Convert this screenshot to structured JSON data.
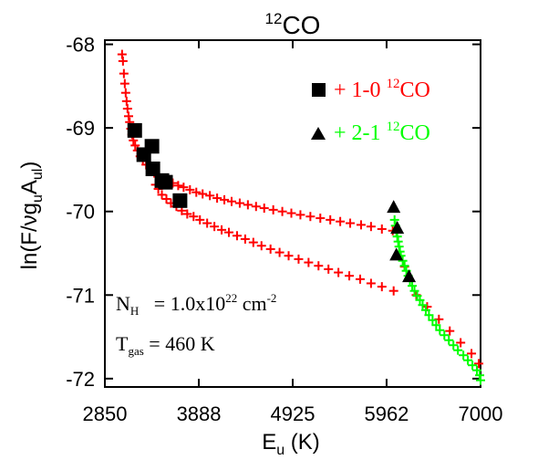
{
  "chart_data": {
    "type": "scatter",
    "title": {
      "sup": "12",
      "main": "CO"
    },
    "xlabel": {
      "main": "E",
      "sub": "u",
      "suffix": " (K)"
    },
    "ylabel": {
      "parts": [
        {
          "t": "ln(F/νg",
          "k": "n"
        },
        {
          "t": "u",
          "k": "sub"
        },
        {
          "t": "A",
          "k": "n"
        },
        {
          "t": "ul",
          "k": "sub"
        },
        {
          "t": ")",
          "k": "n"
        }
      ]
    },
    "xlim": [
      2850,
      7000
    ],
    "ylim": [
      -72.1,
      -67.95
    ],
    "xticks": [
      "2850",
      "3888",
      "4925",
      "5962",
      "7000"
    ],
    "yticks": [
      "-68",
      "-69",
      "-70",
      "-71",
      "-72"
    ],
    "colors": {
      "model_10": "#ff0000",
      "model_21": "#00ff00",
      "obs": "#000000"
    },
    "legend": {
      "placement": "top-right",
      "entries": [
        {
          "marker": "square",
          "label_pre": "+ 1-0 ",
          "sup": "12",
          "label_post": "CO",
          "color": "#ff0000"
        },
        {
          "marker": "triangle",
          "label_pre": "+ 2-1 ",
          "sup": "12",
          "label_post": "CO",
          "color": "#00ff00"
        }
      ]
    },
    "annotations": {
      "nh": {
        "sym": "N",
        "sub": "H",
        "mid": "   = 1.0x10",
        "sup": "22",
        "unit": " cm",
        "unit_sup": "-2"
      },
      "tgas": {
        "sym": "T",
        "sub": "gas",
        "rest": " = 460 K"
      }
    },
    "series": [
      {
        "name": "+ 1-0 12CO",
        "kind": "cross",
        "color": "#ff0000",
        "points": [
          [
            3040,
            -68.12
          ],
          [
            3050,
            -68.2
          ],
          [
            3060,
            -68.35
          ],
          [
            3070,
            -68.47
          ],
          [
            3080,
            -68.58
          ],
          [
            3090,
            -68.68
          ],
          [
            3100,
            -68.77
          ],
          [
            3112,
            -68.86
          ],
          [
            3124,
            -68.93
          ],
          [
            3137,
            -69.01
          ],
          [
            3150,
            -69.08
          ],
          [
            3165,
            -69.15
          ],
          [
            3185,
            -69.21
          ],
          [
            3210,
            -69.27
          ],
          [
            3240,
            -69.34
          ],
          [
            3270,
            -69.39
          ],
          [
            3305,
            -69.44
          ],
          [
            3350,
            -69.49
          ],
          [
            3395,
            -69.54
          ],
          [
            3440,
            -69.57
          ],
          [
            3490,
            -69.6
          ],
          [
            3545,
            -69.63
          ],
          [
            3600,
            -69.66
          ],
          [
            3660,
            -69.69
          ],
          [
            3720,
            -69.71
          ],
          [
            3790,
            -69.74
          ],
          [
            3860,
            -69.77
          ],
          [
            3930,
            -69.79
          ],
          [
            4010,
            -69.81
          ],
          [
            4090,
            -69.84
          ],
          [
            4170,
            -69.86
          ],
          [
            4250,
            -69.88
          ],
          [
            4340,
            -69.9
          ],
          [
            4430,
            -69.92
          ],
          [
            4520,
            -69.94
          ],
          [
            4610,
            -69.96
          ],
          [
            4710,
            -69.98
          ],
          [
            4810,
            -70.0
          ],
          [
            4910,
            -70.02
          ],
          [
            5010,
            -70.04
          ],
          [
            5120,
            -70.06
          ],
          [
            5230,
            -70.08
          ],
          [
            5340,
            -70.1
          ],
          [
            5450,
            -70.12
          ],
          [
            5560,
            -70.14
          ],
          [
            5680,
            -70.16
          ],
          [
            5790,
            -70.18
          ],
          [
            5910,
            -70.21
          ],
          [
            6030,
            -70.23
          ],
          [
            3410,
            -69.68
          ],
          [
            3440,
            -69.73
          ],
          [
            3480,
            -69.8
          ],
          [
            3530,
            -69.85
          ],
          [
            3580,
            -69.9
          ],
          [
            3640,
            -69.94
          ],
          [
            3700,
            -69.99
          ],
          [
            3760,
            -70.03
          ],
          [
            3830,
            -70.06
          ],
          [
            3900,
            -70.1
          ],
          [
            3980,
            -70.14
          ],
          [
            4060,
            -70.18
          ],
          [
            4140,
            -70.22
          ],
          [
            4220,
            -70.25
          ],
          [
            4310,
            -70.29
          ],
          [
            4400,
            -70.33
          ],
          [
            4490,
            -70.37
          ],
          [
            4580,
            -70.41
          ],
          [
            4680,
            -70.45
          ],
          [
            4780,
            -70.49
          ],
          [
            4880,
            -70.53
          ],
          [
            4990,
            -70.57
          ],
          [
            5100,
            -70.61
          ],
          [
            5210,
            -70.65
          ],
          [
            5320,
            -70.69
          ],
          [
            5430,
            -70.73
          ],
          [
            5550,
            -70.77
          ],
          [
            5670,
            -70.81
          ],
          [
            5790,
            -70.86
          ],
          [
            5910,
            -70.9
          ],
          [
            6040,
            -70.95
          ],
          [
            6160,
            -70.66
          ],
          [
            6290,
            -71.0
          ],
          [
            6410,
            -71.14
          ],
          [
            6540,
            -71.29
          ],
          [
            6660,
            -71.43
          ],
          [
            6780,
            -71.57
          ],
          [
            6900,
            -71.7
          ],
          [
            6980,
            -71.82
          ]
        ]
      },
      {
        "name": "+ 2-1 12CO",
        "kind": "cross",
        "color": "#00ff00",
        "points": [
          [
            6050,
            -70.1
          ],
          [
            6060,
            -70.17
          ],
          [
            6070,
            -70.24
          ],
          [
            6080,
            -70.3
          ],
          [
            6090,
            -70.36
          ],
          [
            6100,
            -70.42
          ],
          [
            6110,
            -70.48
          ],
          [
            6120,
            -70.53
          ],
          [
            6140,
            -70.59
          ],
          [
            6160,
            -70.65
          ],
          [
            6180,
            -70.71
          ],
          [
            6200,
            -70.77
          ],
          [
            6220,
            -70.83
          ],
          [
            6245,
            -70.89
          ],
          [
            6270,
            -70.95
          ],
          [
            6300,
            -71.01
          ],
          [
            6330,
            -71.06
          ],
          [
            6360,
            -71.12
          ],
          [
            6395,
            -71.18
          ],
          [
            6430,
            -71.24
          ],
          [
            6470,
            -71.3
          ],
          [
            6510,
            -71.36
          ],
          [
            6550,
            -71.42
          ],
          [
            6600,
            -71.48
          ],
          [
            6650,
            -71.54
          ],
          [
            6700,
            -71.6
          ],
          [
            6750,
            -71.66
          ],
          [
            6810,
            -71.72
          ],
          [
            6860,
            -71.78
          ],
          [
            6910,
            -71.84
          ],
          [
            6960,
            -71.9
          ],
          [
            6990,
            -71.96
          ],
          [
            7000,
            -72.02
          ]
        ]
      },
      {
        "name": "1-0 12CO observed",
        "kind": "square",
        "color": "#000000",
        "points": [
          [
            3180,
            -69.03
          ],
          [
            3280,
            -69.32
          ],
          [
            3370,
            -69.22
          ],
          [
            3380,
            -69.49
          ],
          [
            3480,
            -69.63
          ],
          [
            3520,
            -69.65
          ],
          [
            3680,
            -69.87
          ]
        ]
      },
      {
        "name": "2-1 12CO observed",
        "kind": "triangle",
        "color": "#000000",
        "points": [
          [
            6040,
            -69.95
          ],
          [
            6070,
            -70.52
          ],
          [
            6080,
            -70.2
          ],
          [
            6210,
            -70.78
          ]
        ]
      }
    ]
  }
}
